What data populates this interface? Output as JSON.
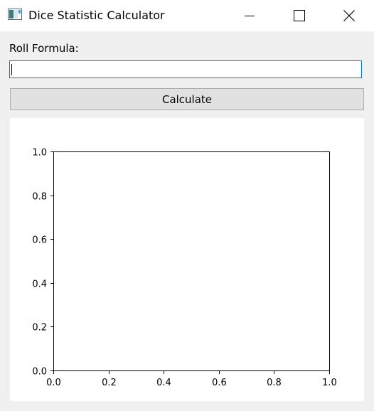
{
  "window": {
    "title": "Dice Statistic Calculator",
    "icon": "app-window-icon"
  },
  "controls": {
    "minimize_icon": "minimize-icon",
    "maximize_icon": "maximize-icon",
    "close_icon": "close-icon"
  },
  "form": {
    "formula_label": "Roll Formula:",
    "formula_value": "",
    "formula_placeholder": "",
    "calculate_label": "Calculate"
  },
  "colors": {
    "focus_border": "#0078d7",
    "button_bg": "#e1e1e1",
    "window_bg": "#f0f0f0"
  },
  "chart_data": {
    "type": "line",
    "series": [],
    "title": "",
    "xlabel": "",
    "ylabel": "",
    "xlim": [
      0.0,
      1.0
    ],
    "ylim": [
      0.0,
      1.0
    ],
    "x_ticks": [
      "0.0",
      "0.2",
      "0.4",
      "0.6",
      "0.8",
      "1.0"
    ],
    "y_ticks": [
      "0.0",
      "0.2",
      "0.4",
      "0.6",
      "0.8",
      "1.0"
    ],
    "grid": false,
    "legend": "none"
  }
}
